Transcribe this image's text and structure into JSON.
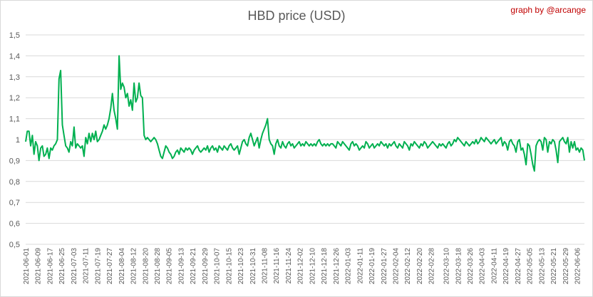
{
  "title": "HBD price (USD)",
  "credit": "graph by @arcange",
  "colors": {
    "line": "#00b050",
    "grid": "#d9d9d9",
    "axis_text": "#595959",
    "credit": "#c00000"
  },
  "chart_data": {
    "type": "line",
    "title": "HBD price (USD)",
    "xlabel": "",
    "ylabel": "",
    "ylim": [
      0.5,
      1.5
    ],
    "y_ticks": [
      "0,5",
      "0,6",
      "0,7",
      "0,8",
      "0,9",
      "1",
      "1,1",
      "1,2",
      "1,3",
      "1,4",
      "1,5"
    ],
    "grid": true,
    "legend": "none",
    "x_tick_labels": [
      "2021-06-01",
      "2021-06-09",
      "2021-06-17",
      "2021-06-25",
      "2021-07-03",
      "2021-07-11",
      "2021-07-19",
      "2021-07-27",
      "2021-08-04",
      "2021-08-12",
      "2021-08-20",
      "2021-08-28",
      "2021-09-05",
      "2021-09-13",
      "2021-09-21",
      "2021-09-29",
      "2021-10-07",
      "2021-10-15",
      "2021-10-23",
      "2021-10-31",
      "2021-11-08",
      "2021-11-16",
      "2021-11-24",
      "2021-12-02",
      "2021-12-10",
      "2021-12-18",
      "2021-12-26",
      "2022-01-03",
      "2022-01-11",
      "2022-01-19",
      "2022-01-27",
      "2022-02-04",
      "2022-02-12",
      "2022-02-20",
      "2022-02-28",
      "2022-03-10",
      "2022-03-18",
      "2022-03-26",
      "2022-04-03",
      "2022-04-11",
      "2022-04-19",
      "2022-04-27",
      "2022-05-05",
      "2022-05-13",
      "2022-05-21",
      "2022-05-29",
      "2022-06-06"
    ],
    "series": [
      {
        "x_start": "2021-06-01",
        "x_end": "2022-06-11",
        "values": [
          0.99,
          1.04,
          1.04,
          0.97,
          1.02,
          0.93,
          0.99,
          0.97,
          0.9,
          0.96,
          0.97,
          0.92,
          0.93,
          0.96,
          0.91,
          0.96,
          0.95,
          0.97,
          0.98,
          1.0,
          1.29,
          1.33,
          1.07,
          1.02,
          0.97,
          0.96,
          0.94,
          0.99,
          0.97,
          1.06,
          0.96,
          0.98,
          0.97,
          0.96,
          0.97,
          0.92,
          1.01,
          0.98,
          1.03,
          0.99,
          1.03,
          1.0,
          1.04,
          0.99,
          1.0,
          1.02,
          1.04,
          1.07,
          1.05,
          1.07,
          1.1,
          1.15,
          1.22,
          1.14,
          1.1,
          1.05,
          1.4,
          1.24,
          1.27,
          1.25,
          1.2,
          1.22,
          1.16,
          1.19,
          1.14,
          1.27,
          1.18,
          1.2,
          1.27,
          1.21,
          1.2,
          1.02,
          1.0,
          1.01,
          1.0,
          0.99,
          1.0,
          1.01,
          1.0,
          0.98,
          0.95,
          0.92,
          0.91,
          0.94,
          0.97,
          0.96,
          0.94,
          0.93,
          0.91,
          0.92,
          0.94,
          0.95,
          0.93,
          0.96,
          0.95,
          0.94,
          0.96,
          0.95,
          0.96,
          0.95,
          0.93,
          0.95,
          0.96,
          0.97,
          0.95,
          0.94,
          0.95,
          0.96,
          0.95,
          0.97,
          0.94,
          0.96,
          0.97,
          0.95,
          0.96,
          0.94,
          0.97,
          0.96,
          0.95,
          0.97,
          0.96,
          0.95,
          0.97,
          0.98,
          0.96,
          0.95,
          0.96,
          0.97,
          0.93,
          0.96,
          0.99,
          1.0,
          0.98,
          0.97,
          1.01,
          1.03,
          1.0,
          0.97,
          0.99,
          1.01,
          0.96,
          1.0,
          1.03,
          1.05,
          1.07,
          1.1,
          1.0,
          0.98,
          0.97,
          0.93,
          0.98,
          1.0,
          0.97,
          0.96,
          0.99,
          0.97,
          0.96,
          0.98,
          0.99,
          0.97,
          0.98,
          0.96,
          0.97,
          0.98,
          0.99,
          0.97,
          0.98,
          0.97,
          0.99,
          0.98,
          0.97,
          0.98,
          0.97,
          0.98,
          0.97,
          0.99,
          1.0,
          0.98,
          0.97,
          0.98,
          0.97,
          0.98,
          0.97,
          0.98,
          0.98,
          0.97,
          0.96,
          0.99,
          0.98,
          0.97,
          0.99,
          0.98,
          0.97,
          0.96,
          0.95,
          0.98,
          0.99,
          0.97,
          0.98,
          0.97,
          0.95,
          0.96,
          0.97,
          0.96,
          0.99,
          0.98,
          0.96,
          0.97,
          0.98,
          0.96,
          0.97,
          0.98,
          0.97,
          0.99,
          0.98,
          0.97,
          0.98,
          0.96,
          0.98,
          0.97,
          0.98,
          0.99,
          0.97,
          0.96,
          0.98,
          0.97,
          0.96,
          0.99,
          0.98,
          0.97,
          0.95,
          0.98,
          0.97,
          0.99,
          0.98,
          0.97,
          0.96,
          0.98,
          0.97,
          0.99,
          0.98,
          0.96,
          0.97,
          0.98,
          0.99,
          0.98,
          0.97,
          0.96,
          0.98,
          0.97,
          0.98,
          0.97,
          0.96,
          0.98,
          0.99,
          0.97,
          0.98,
          1.0,
          0.99,
          1.01,
          1.0,
          0.99,
          0.98,
          0.97,
          0.99,
          0.98,
          0.97,
          0.98,
          0.99,
          0.98,
          1.0,
          0.98,
          0.99,
          1.01,
          1.0,
          0.99,
          1.01,
          1.0,
          0.99,
          0.98,
          0.99,
          1.0,
          0.98,
          0.99,
          1.0,
          1.01,
          0.97,
          0.99,
          0.98,
          0.95,
          0.99,
          1.0,
          0.98,
          0.97,
          0.94,
          0.99,
          1.0,
          0.95,
          0.96,
          0.93,
          0.88,
          0.98,
          0.97,
          0.93,
          0.88,
          0.85,
          0.97,
          0.99,
          1.0,
          0.99,
          0.95,
          1.01,
          1.0,
          0.94,
          0.99,
          0.98,
          1.0,
          0.99,
          0.95,
          0.89,
          0.99,
          1.0,
          1.01,
          0.99,
          0.98,
          1.01,
          0.94,
          0.99,
          0.96,
          0.99,
          0.95,
          0.96,
          0.94,
          0.96,
          0.95,
          0.9
        ]
      }
    ]
  }
}
